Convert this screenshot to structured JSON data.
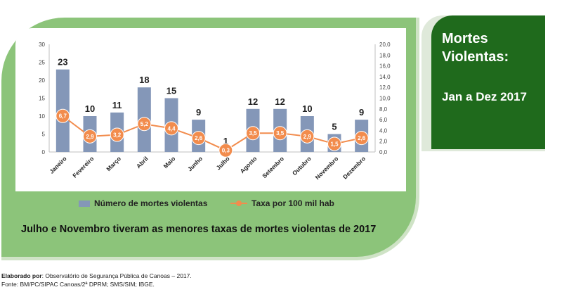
{
  "title_card": {
    "line1": "Mortes",
    "line2": "Violentas:",
    "period": "Jan a Dez 2017"
  },
  "chart_data": {
    "type": "bar",
    "categories": [
      "Janeiro",
      "Fevereiro",
      "Março",
      "Abril",
      "Maio",
      "Junho",
      "Julho",
      "Agosto",
      "Setembro",
      "Outubro",
      "Novembro",
      "Dezembro"
    ],
    "series": [
      {
        "name": "Número de mortes violentas",
        "type": "bar",
        "axis": "left",
        "color": "#8497b8",
        "values": [
          23,
          10,
          11,
          18,
          15,
          9,
          1,
          12,
          12,
          10,
          5,
          9
        ],
        "labels": [
          "23",
          "10",
          "11",
          "18",
          "15",
          "9",
          "1",
          "12",
          "12",
          "10",
          "5",
          "9"
        ]
      },
      {
        "name": "Taxa por 100 mil hab",
        "type": "line",
        "axis": "right",
        "color": "#f28c4d",
        "values": [
          6.7,
          2.9,
          3.2,
          5.2,
          4.4,
          2.6,
          0.3,
          3.5,
          3.5,
          2.9,
          1.5,
          2.6
        ],
        "labels": [
          "6,7",
          "2,9",
          "3,2",
          "5,2",
          "4,4",
          "2,6",
          "0,3",
          "3,5",
          "3,5",
          "2,9",
          "1,5",
          "2,6"
        ]
      }
    ],
    "y_left": {
      "min": 0,
      "max": 30,
      "ticks": [
        "0",
        "5",
        "10",
        "15",
        "20",
        "25",
        "30"
      ]
    },
    "y_right": {
      "min": 0,
      "max": 20,
      "ticks": [
        "0,0",
        "2,0",
        "4,0",
        "6,0",
        "8,0",
        "10,0",
        "12,0",
        "14,0",
        "16,0",
        "18,0",
        "20,0"
      ]
    },
    "grid": false,
    "legend_position": "bottom"
  },
  "legend": {
    "bar_label": "Número de mortes violentas",
    "line_label": "Taxa por 100 mil hab"
  },
  "caption": "Julho e Novembro tiveram as menores taxas de mortes violentas de 2017",
  "footer": {
    "elaborated_label": "Elaborado por",
    "elaborated_text": ": Observatório de Segurança Pública de Canoas – 2017.",
    "source": "Fonte: BM/PC/SIPAC Canoas/2ª DPRM; SMS/SIM; IBGE."
  }
}
